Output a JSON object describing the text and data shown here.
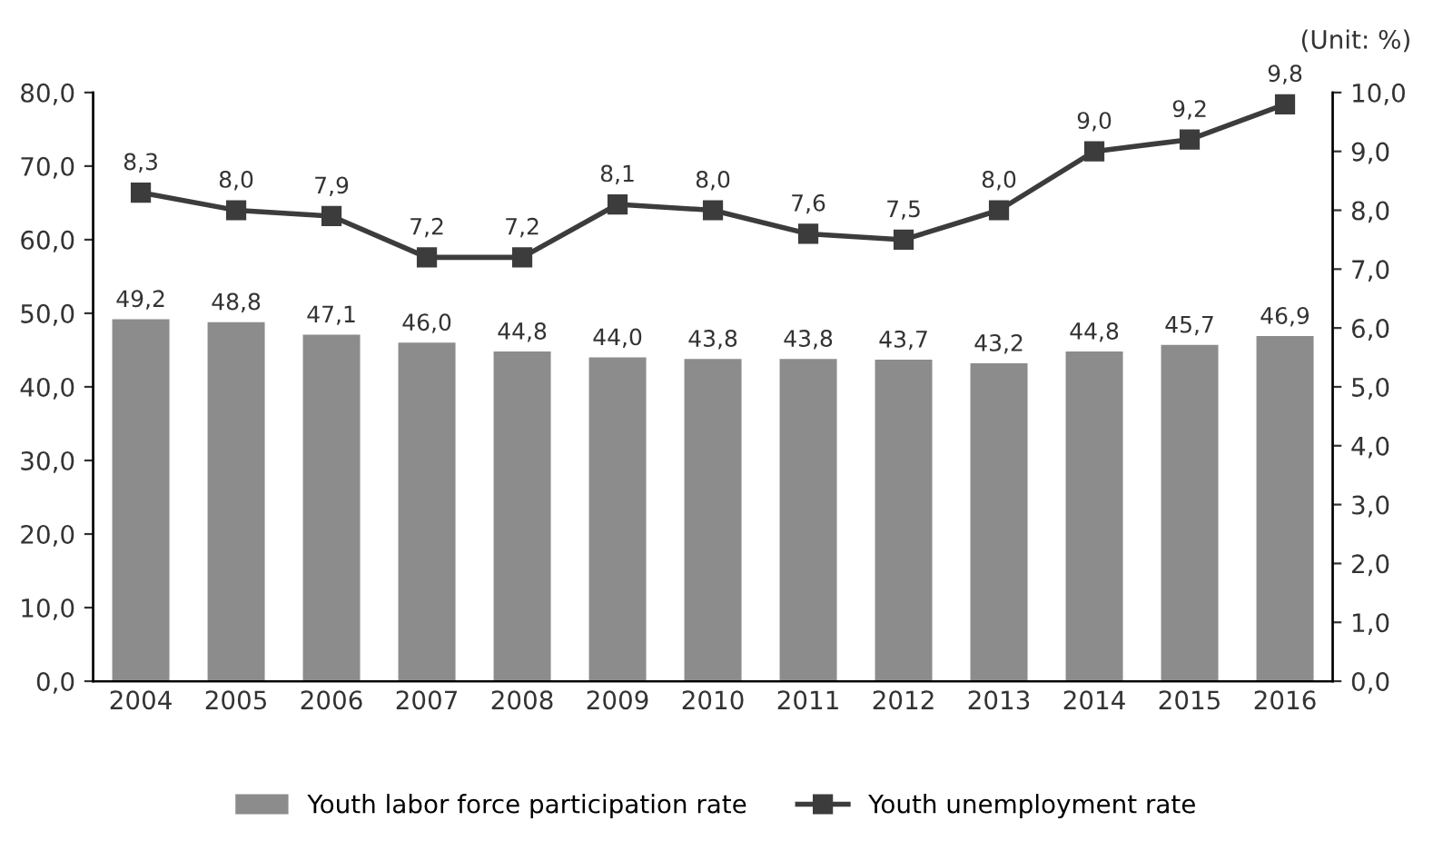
{
  "chart_data": {
    "type": "bar",
    "categories": [
      "2004",
      "2005",
      "2006",
      "2007",
      "2008",
      "2009",
      "2010",
      "2011",
      "2012",
      "2013",
      "2014",
      "2015",
      "2016"
    ],
    "series": [
      {
        "name": "Youth labor force participation rate",
        "color": "#8c8c8c",
        "values": [
          49.2,
          48.8,
          47.1,
          46.0,
          44.8,
          44.0,
          43.8,
          43.8,
          43.7,
          43.2,
          44.8,
          45.7,
          46.9
        ],
        "value_labels": [
          "49,2",
          "48,8",
          "47,1",
          "46,0",
          "44,8",
          "44,0",
          "43,8",
          "43,8",
          "43,7",
          "43,2",
          "44,8",
          "45,7",
          "46,9"
        ]
      },
      {
        "name": "Youth unemployment rate",
        "type": "line",
        "axis": "y2",
        "color": "#3c3c3c",
        "marker": "square",
        "line_style": "solid",
        "values": [
          8.3,
          8.0,
          7.9,
          7.2,
          7.2,
          8.1,
          8.0,
          7.6,
          7.5,
          8.0,
          9.0,
          9.2,
          9.8
        ],
        "value_labels": [
          "8,3",
          "8,0",
          "7,9",
          "7,2",
          "7,2",
          "8,1",
          "8,0",
          "7,6",
          "7,5",
          "8,0",
          "9,0",
          "9,2",
          "9,8"
        ]
      }
    ],
    "ylim": [
      0,
      80
    ],
    "yticks": [
      {
        "value": 0,
        "label": "0,0"
      },
      {
        "value": 10,
        "label": "10,0"
      },
      {
        "value": 20,
        "label": "20,0"
      },
      {
        "value": 30,
        "label": "30,0"
      },
      {
        "value": 40,
        "label": "40,0"
      },
      {
        "value": 50,
        "label": "50,0"
      },
      {
        "value": 60,
        "label": "60,0"
      },
      {
        "value": 70,
        "label": "70,0"
      },
      {
        "value": 80,
        "label": "80,0"
      }
    ],
    "y2lim": [
      0,
      10
    ],
    "y2ticks": [
      {
        "value": 0,
        "label": "0,0"
      },
      {
        "value": 1,
        "label": "1,0"
      },
      {
        "value": 2,
        "label": "2,0"
      },
      {
        "value": 3,
        "label": "3,0"
      },
      {
        "value": 4,
        "label": "4,0"
      },
      {
        "value": 5,
        "label": "5,0"
      },
      {
        "value": 6,
        "label": "6,0"
      },
      {
        "value": 7,
        "label": "7,0"
      },
      {
        "value": 8,
        "label": "8,0"
      },
      {
        "value": 9,
        "label": "9,0"
      },
      {
        "value": 10,
        "label": "10,0"
      }
    ],
    "annotations": [
      "(Unit: %)"
    ],
    "legend": "bottom",
    "grid": false
  }
}
